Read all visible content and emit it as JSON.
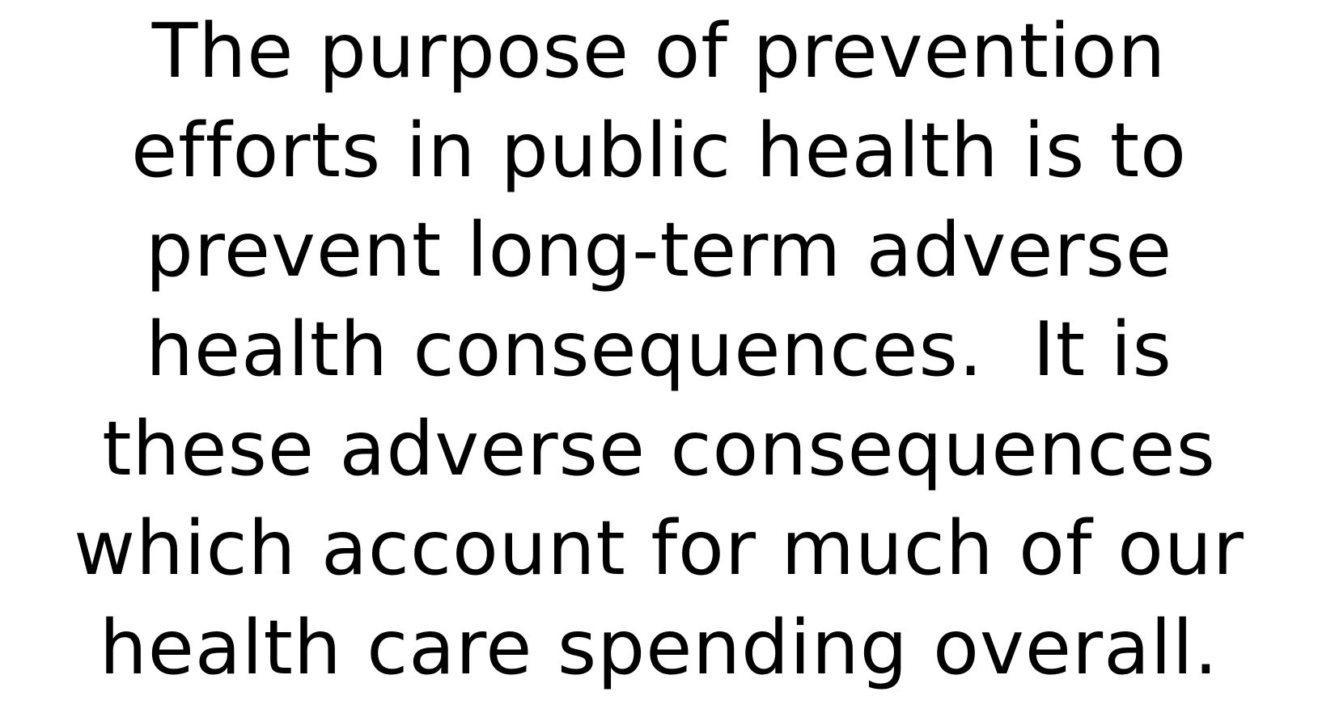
{
  "paragraph": {
    "lines": [
      "The purpose of prevention",
      "efforts in public health is to",
      "prevent long-term adverse",
      "health consequences.  It is",
      "these adverse consequences",
      "which account for much of our",
      "health care spending overall."
    ]
  }
}
